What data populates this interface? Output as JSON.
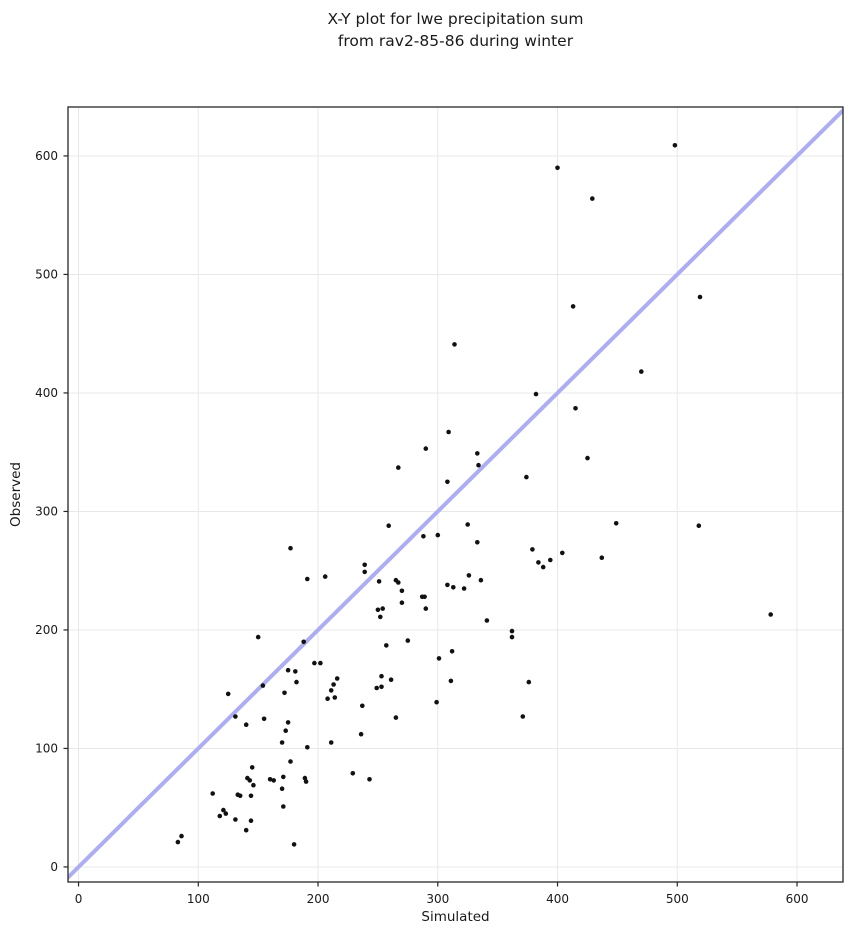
{
  "chart_data": {
    "type": "scatter",
    "title": "X-Y plot for lwe precipitation sum\nfrom rav2-85-86 during winter",
    "title_line1": "X-Y plot for lwe precipitation sum",
    "title_line2": "from rav2-85-86 during winter",
    "xlabel": "Simulated",
    "ylabel": "Observed",
    "xlim": [
      -8.8,
      638.4
    ],
    "ylim": [
      -12.7,
      641.3
    ],
    "xticks": [
      0,
      100,
      200,
      300,
      400,
      500,
      600
    ],
    "yticks": [
      0,
      100,
      200,
      300,
      400,
      500,
      600
    ],
    "grid": true,
    "grid_color": "#e8e8e8",
    "spine_color": "#262626",
    "marker_color": "#111111",
    "marker_radius": 2.3,
    "identity_line": {
      "meaning": "1:1 reference line y = x",
      "color": "#acadf2",
      "width": 4
    },
    "points": [
      [
        83,
        21
      ],
      [
        86,
        26
      ],
      [
        112,
        62
      ],
      [
        118,
        43
      ],
      [
        121,
        48
      ],
      [
        123,
        45
      ],
      [
        125,
        146
      ],
      [
        131,
        127
      ],
      [
        131,
        40
      ],
      [
        133,
        61
      ],
      [
        135,
        60
      ],
      [
        140,
        120
      ],
      [
        140,
        31
      ],
      [
        141,
        75
      ],
      [
        143,
        73
      ],
      [
        144,
        60
      ],
      [
        144,
        39
      ],
      [
        145,
        84
      ],
      [
        146,
        69
      ],
      [
        150,
        194
      ],
      [
        154,
        153
      ],
      [
        155,
        125
      ],
      [
        160,
        74
      ],
      [
        163,
        73
      ],
      [
        170,
        105
      ],
      [
        170,
        66
      ],
      [
        171,
        76
      ],
      [
        171,
        51
      ],
      [
        172,
        147
      ],
      [
        173,
        115
      ],
      [
        175,
        166
      ],
      [
        175,
        122
      ],
      [
        177,
        89
      ],
      [
        180,
        19
      ],
      [
        181,
        165
      ],
      [
        182,
        156
      ],
      [
        188,
        190
      ],
      [
        189,
        75
      ],
      [
        190,
        72
      ],
      [
        191,
        101
      ],
      [
        197,
        172
      ],
      [
        202,
        172
      ],
      [
        208,
        142
      ],
      [
        211,
        149
      ],
      [
        211,
        105
      ],
      [
        213,
        154
      ],
      [
        214,
        143
      ],
      [
        216,
        159
      ],
      [
        229,
        79
      ],
      [
        236,
        112
      ],
      [
        237,
        136
      ],
      [
        243,
        74
      ],
      [
        249,
        151
      ],
      [
        250,
        217
      ],
      [
        251,
        241
      ],
      [
        252,
        211
      ],
      [
        253,
        161
      ],
      [
        253,
        152
      ],
      [
        254,
        218
      ],
      [
        257,
        187
      ],
      [
        261,
        158
      ],
      [
        265,
        126
      ],
      [
        275,
        191
      ],
      [
        290,
        218
      ],
      [
        299,
        139
      ],
      [
        301,
        176
      ],
      [
        311,
        157
      ],
      [
        312,
        182
      ],
      [
        341,
        208
      ],
      [
        362,
        199
      ],
      [
        362,
        194
      ],
      [
        371,
        127
      ],
      [
        376,
        156
      ],
      [
        578,
        213
      ],
      [
        177,
        269
      ],
      [
        191,
        243
      ],
      [
        206,
        245
      ],
      [
        239,
        255
      ],
      [
        239,
        249
      ],
      [
        259,
        288
      ],
      [
        265,
        242
      ],
      [
        267,
        240
      ],
      [
        267,
        337
      ],
      [
        270,
        233
      ],
      [
        270,
        223
      ],
      [
        287,
        228
      ],
      [
        288,
        279
      ],
      [
        289,
        228
      ],
      [
        290,
        353
      ],
      [
        300,
        280
      ],
      [
        308,
        325
      ],
      [
        308,
        238
      ],
      [
        309,
        367
      ],
      [
        313,
        236
      ],
      [
        314,
        441
      ],
      [
        322,
        235
      ],
      [
        325,
        289
      ],
      [
        326,
        246
      ],
      [
        333,
        349
      ],
      [
        333,
        274
      ],
      [
        334,
        339
      ],
      [
        336,
        242
      ],
      [
        374,
        329
      ],
      [
        379,
        268
      ],
      [
        382,
        399
      ],
      [
        384,
        257
      ],
      [
        388,
        253
      ],
      [
        394,
        259
      ],
      [
        404,
        265
      ],
      [
        415,
        387
      ],
      [
        425,
        345
      ],
      [
        400,
        590
      ],
      [
        413,
        473
      ],
      [
        429,
        564
      ],
      [
        437,
        261
      ],
      [
        449,
        290
      ],
      [
        470,
        418
      ],
      [
        498,
        609
      ],
      [
        518,
        288
      ],
      [
        519,
        481
      ]
    ]
  }
}
